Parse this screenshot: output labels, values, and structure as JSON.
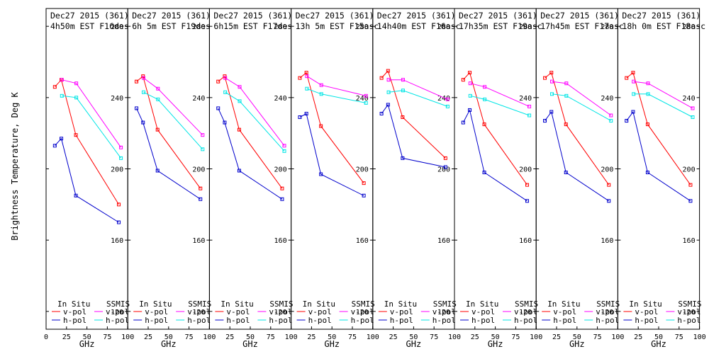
{
  "chart_data": {
    "type": "line",
    "ylabel": "Brightness Temperature, Deg K",
    "xlabel": "GHz",
    "xlim": [
      0,
      100
    ],
    "ylim": [
      110,
      290
    ],
    "x_ticks": [
      "0",
      "25",
      "50",
      "75",
      "100"
    ],
    "y_ticks": [
      "120",
      "160",
      "200",
      "240",
      "280"
    ],
    "legend": {
      "in_situ": "In Situ",
      "ssmis": "SSMIS",
      "vpol": "v-pol",
      "hpol": "h-pol"
    },
    "colors": {
      "insitu_v": "#ff0000",
      "insitu_h": "#0000cc",
      "ssmis_v": "#ff00ff",
      "ssmis_h": "#00e5e5"
    },
    "panels": [
      {
        "title_line1": "Dec27 2015 (361)",
        "title_line2": "4h50m EST F16des",
        "series": [
          {
            "key": "insitu_v",
            "x": [
              10.7,
              18.7,
              36.5,
              89
            ],
            "y": [
              246,
              250,
              219,
              180
            ]
          },
          {
            "key": "insitu_h",
            "x": [
              10.7,
              18.7,
              36.5,
              89
            ],
            "y": [
              213,
              217,
              185,
              170
            ]
          },
          {
            "key": "ssmis_v",
            "x": [
              19.35,
              37,
              91.655
            ],
            "y": [
              250,
              248,
              212
            ]
          },
          {
            "key": "ssmis_h",
            "x": [
              19.35,
              37,
              91.655
            ],
            "y": [
              241,
              240,
              206
            ]
          }
        ]
      },
      {
        "title_line1": "Dec27 2015 (361)",
        "title_line2": "6h 5m EST F19des",
        "series": [
          {
            "key": "insitu_v",
            "x": [
              10.7,
              18.7,
              36.5,
              89
            ],
            "y": [
              249,
              252,
              222,
              189
            ]
          },
          {
            "key": "insitu_h",
            "x": [
              10.7,
              18.7,
              36.5,
              89
            ],
            "y": [
              234,
              226,
              199,
              183
            ]
          },
          {
            "key": "ssmis_v",
            "x": [
              19.35,
              37,
              91.655
            ],
            "y": [
              251,
              245,
              219
            ]
          },
          {
            "key": "ssmis_h",
            "x": [
              19.35,
              37,
              91.655
            ],
            "y": [
              243,
              239,
              211
            ]
          }
        ]
      },
      {
        "title_line1": "Dec27 2015 (361)",
        "title_line2": "6h15m EST F17des",
        "series": [
          {
            "key": "insitu_v",
            "x": [
              10.7,
              18.7,
              36.5,
              89
            ],
            "y": [
              249,
              252,
              222,
              189
            ]
          },
          {
            "key": "insitu_h",
            "x": [
              10.7,
              18.7,
              36.5,
              89
            ],
            "y": [
              234,
              226,
              199,
              183
            ]
          },
          {
            "key": "ssmis_v",
            "x": [
              19.35,
              37,
              91.655
            ],
            "y": [
              251,
              246,
              213
            ]
          },
          {
            "key": "ssmis_h",
            "x": [
              19.35,
              37,
              91.655
            ],
            "y": [
              243,
              238,
              210
            ]
          }
        ]
      },
      {
        "title_line1": "Dec27 2015 (361)",
        "title_line2": "13h 5m EST F15asc",
        "series": [
          {
            "key": "insitu_v",
            "x": [
              10.7,
              18.7,
              36.5,
              89
            ],
            "y": [
              251,
              254,
              224,
              192
            ]
          },
          {
            "key": "insitu_h",
            "x": [
              10.7,
              18.7,
              36.5,
              89
            ],
            "y": [
              229,
              231,
              197,
              185
            ]
          },
          {
            "key": "ssmis_v",
            "x": [
              19.35,
              37,
              91.655
            ],
            "y": [
              252,
              247,
              241
            ]
          },
          {
            "key": "ssmis_h",
            "x": [
              19.35,
              37,
              91.655
            ],
            "y": [
              245,
              242,
              237
            ]
          }
        ]
      },
      {
        "title_line1": "Dec27 2015 (361)",
        "title_line2": "14h40m EST F16asc",
        "series": [
          {
            "key": "insitu_v",
            "x": [
              10.7,
              18.7,
              36.5,
              89
            ],
            "y": [
              251,
              255,
              229,
              206
            ]
          },
          {
            "key": "insitu_h",
            "x": [
              10.7,
              18.7,
              36.5,
              89
            ],
            "y": [
              231,
              236,
              206,
              201
            ]
          },
          {
            "key": "ssmis_v",
            "x": [
              19.35,
              37,
              91.655
            ],
            "y": [
              250,
              250,
              239
            ]
          },
          {
            "key": "ssmis_h",
            "x": [
              19.35,
              37,
              91.655
            ],
            "y": [
              243,
              244,
              235
            ]
          }
        ]
      },
      {
        "title_line1": "Dec27 2015 (361)",
        "title_line2": "17h35m EST F19asc",
        "series": [
          {
            "key": "insitu_v",
            "x": [
              10.7,
              18.7,
              36.5,
              89
            ],
            "y": [
              250,
              254,
              225,
              191
            ]
          },
          {
            "key": "insitu_h",
            "x": [
              10.7,
              18.7,
              36.5,
              89
            ],
            "y": [
              226,
              233,
              198,
              182
            ]
          },
          {
            "key": "ssmis_v",
            "x": [
              19.35,
              37,
              91.655
            ],
            "y": [
              248,
              246,
              235
            ]
          },
          {
            "key": "ssmis_h",
            "x": [
              19.35,
              37,
              91.655
            ],
            "y": [
              241,
              239,
              230
            ]
          }
        ]
      },
      {
        "title_line1": "Dec27 2015 (361)",
        "title_line2": "17h45m EST F17asc",
        "series": [
          {
            "key": "insitu_v",
            "x": [
              10.7,
              18.7,
              36.5,
              89
            ],
            "y": [
              251,
              254,
              225,
              191
            ]
          },
          {
            "key": "insitu_h",
            "x": [
              10.7,
              18.7,
              36.5,
              89
            ],
            "y": [
              227,
              232,
              198,
              182
            ]
          },
          {
            "key": "ssmis_v",
            "x": [
              19.35,
              37,
              91.655
            ],
            "y": [
              249,
              248,
              230
            ]
          },
          {
            "key": "ssmis_h",
            "x": [
              19.35,
              37,
              91.655
            ],
            "y": [
              242,
              241,
              227
            ]
          }
        ]
      },
      {
        "title_line1": "Dec27 2015 (361)",
        "title_line2": "18h 0m EST F18asc",
        "series": [
          {
            "key": "insitu_v",
            "x": [
              10.7,
              18.7,
              36.5,
              89
            ],
            "y": [
              251,
              254,
              225,
              191
            ]
          },
          {
            "key": "insitu_h",
            "x": [
              10.7,
              18.7,
              36.5,
              89
            ],
            "y": [
              227,
              232,
              198,
              182
            ]
          },
          {
            "key": "ssmis_v",
            "x": [
              19.35,
              37,
              91.655
            ],
            "y": [
              249,
              248,
              234
            ]
          },
          {
            "key": "ssmis_h",
            "x": [
              19.35,
              37,
              91.655
            ],
            "y": [
              242,
              242,
              229
            ]
          }
        ]
      }
    ]
  }
}
